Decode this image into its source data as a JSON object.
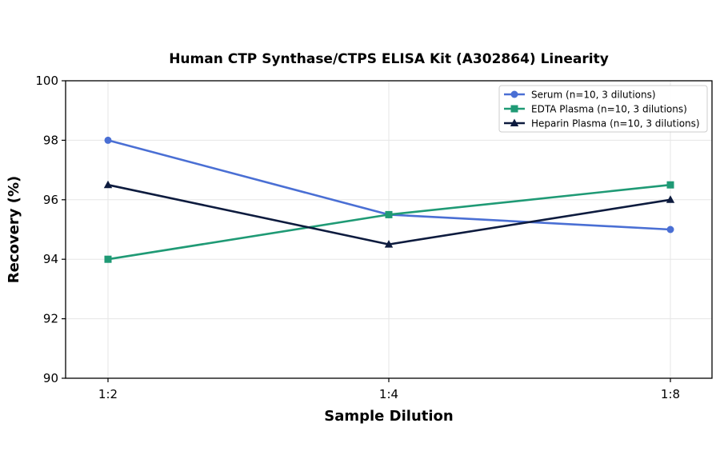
{
  "chart_data": {
    "type": "line",
    "title": "Human CTP Synthase/CTPS ELISA Kit (A302864) Linearity",
    "xlabel": "Sample Dilution",
    "ylabel": "Recovery (%)",
    "categories": [
      "1:2",
      "1:4",
      "1:8"
    ],
    "ylim": [
      90,
      100
    ],
    "yticks": [
      90,
      92,
      94,
      96,
      98,
      100
    ],
    "grid": true,
    "legend_position": "top-right",
    "series": [
      {
        "name": "Serum (n=10, 3 dilutions)",
        "values": [
          98.0,
          95.5,
          95.0
        ],
        "color": "#4a6fd4",
        "marker": "circle"
      },
      {
        "name": "EDTA Plasma (n=10, 3 dilutions)",
        "values": [
          94.0,
          95.5,
          96.5
        ],
        "color": "#1f9a75",
        "marker": "square"
      },
      {
        "name": "Heparin Plasma (n=10, 3 dilutions)",
        "values": [
          96.5,
          94.5,
          96.0
        ],
        "color": "#0d1b3e",
        "marker": "triangle"
      }
    ]
  }
}
